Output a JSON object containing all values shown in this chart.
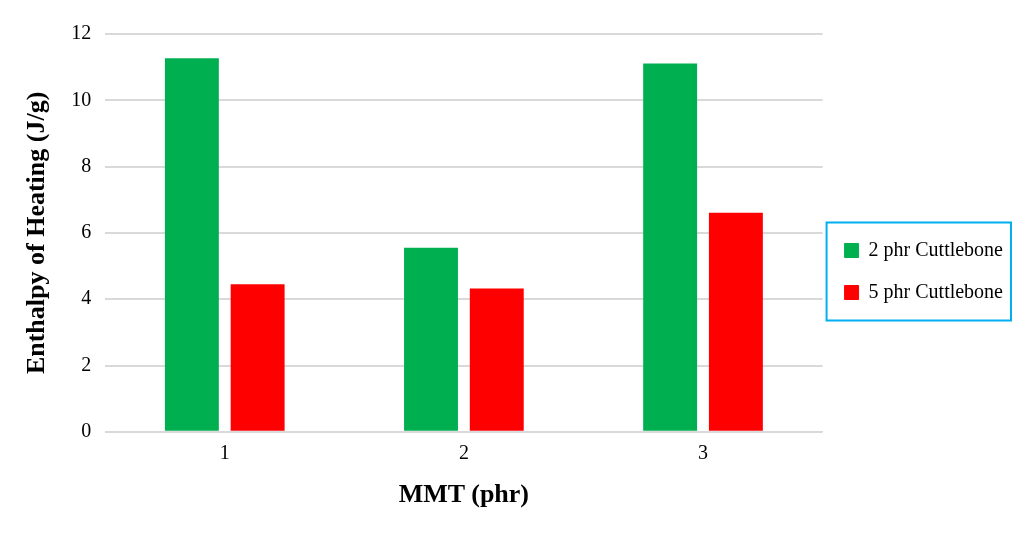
{
  "chart_data": {
    "type": "bar",
    "xlabel": "MMT (phr)",
    "ylabel": "Enthalpy of Heating (J/g)",
    "categories": [
      "1",
      "2",
      "3"
    ],
    "series": [
      {
        "name": "2 phr Cuttlebone",
        "color": "#00b050",
        "values": [
          11.27,
          5.55,
          11.11
        ]
      },
      {
        "name": "5 phr Cuttlebone",
        "color": "#ff0000",
        "values": [
          4.45,
          4.32,
          6.61
        ]
      }
    ],
    "ylim": [
      0,
      12
    ],
    "yticks": [
      0,
      2,
      4,
      6,
      8,
      10,
      12
    ],
    "grid": "y",
    "legend": "right"
  }
}
